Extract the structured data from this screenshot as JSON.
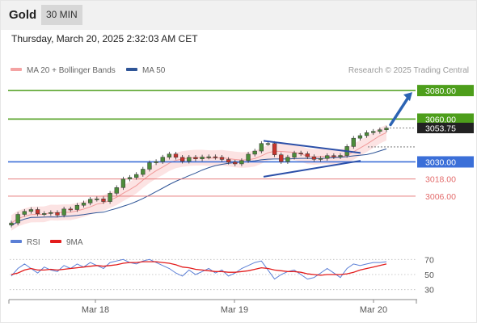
{
  "header": {
    "symbol": "Gold",
    "timeframe": "30 MIN",
    "timestamp": "Thursday, March 20, 2025 2:32:03 AM CET"
  },
  "legend": [
    {
      "label": "MA 20 + Bollinger Bands",
      "color": "#f4a3a3"
    },
    {
      "label": "MA 50",
      "color": "#2f5597"
    }
  ],
  "credit": "Research © 2025 Trading Central",
  "rsi_legend": [
    {
      "label": "RSI",
      "color": "#5b7fd6"
    },
    {
      "label": "9MA",
      "color": "#e31c1c"
    }
  ],
  "colors": {
    "resistance": "#4d9e1b",
    "pivot": "#3b6fd8",
    "support": "#e36b6b",
    "price_tag": "#222222",
    "arrow": "#2b63b3",
    "candle_up": "#4c8c3a",
    "candle_down": "#c8342d"
  },
  "chart_data": [
    {
      "type": "candlestick",
      "y_axis_side": "right",
      "ylim": [
        2985,
        3088
      ],
      "x_ticks": [
        "Mar 18",
        "Mar 19",
        "Mar 20"
      ],
      "levels": [
        {
          "value": 3080.0,
          "label": "3080.00",
          "kind": "resistance"
        },
        {
          "value": 3060.0,
          "label": "3060.00",
          "kind": "resistance"
        },
        {
          "value": 3030.0,
          "label": "3030.00",
          "kind": "pivot"
        },
        {
          "value": 3018.0,
          "label": "3018.00",
          "kind": "support"
        },
        {
          "value": 3006.0,
          "label": "3006.00",
          "kind": "support"
        }
      ],
      "last_price": {
        "value": 3053.75,
        "label": "3053.75"
      },
      "closes": [
        2987.2,
        2993.2,
        2995.3,
        2996.6,
        2993.6,
        2993.8,
        2994.5,
        2992.7,
        2997.0,
        2996.6,
        2999.6,
        3001.2,
        3003.8,
        3004.1,
        3002.2,
        3008.0,
        3012.0,
        3018.0,
        3019.1,
        3021.2,
        3024.9,
        3029.4,
        3030.2,
        3033.3,
        3035.5,
        3033.2,
        3030.5,
        3033.2,
        3032.1,
        3033.4,
        3033.6,
        3033.2,
        3031.7,
        3029.8,
        3028.6,
        3030.9,
        3035.4,
        3037.6,
        3042.9,
        3042.9,
        3035.0,
        3030.2,
        3033.3,
        3036.2,
        3035.7,
        3033.6,
        3031.8,
        3032.4,
        3034.4,
        3033.6,
        3034.5,
        3040.8,
        3046.6,
        3048.4,
        3050.5,
        3051.4,
        3052.5,
        3053.75
      ],
      "annotations": {
        "wedge_upper": [
          [
            3044.8,
            3036.3
          ]
        ],
        "wedge_lower": [
          [
            3019.6,
            3030.8
          ]
        ],
        "arrow_target": 3080.0
      }
    },
    {
      "type": "line",
      "ylim": [
        20,
        80
      ],
      "y_ticks": [
        70,
        50,
        30
      ],
      "series": [
        {
          "name": "RSI",
          "values": [
            48,
            58,
            64,
            58,
            52,
            60,
            56,
            54,
            62,
            58,
            64,
            60,
            66,
            62,
            58,
            66,
            68,
            70,
            66,
            64,
            68,
            70,
            66,
            62,
            58,
            52,
            48,
            56,
            50,
            54,
            58,
            52,
            56,
            48,
            52,
            58,
            62,
            66,
            68,
            56,
            44,
            50,
            54,
            56,
            50,
            44,
            46,
            52,
            58,
            52,
            46,
            58,
            64,
            62,
            64,
            66,
            66,
            67
          ]
        },
        {
          "name": "9MA",
          "values": [
            50,
            52,
            56,
            58,
            56,
            56,
            57,
            56,
            57,
            58,
            59,
            60,
            61,
            62,
            61,
            62,
            63,
            65,
            66,
            66,
            67,
            67,
            67,
            66,
            65,
            63,
            60,
            59,
            57,
            56,
            55,
            54,
            54,
            53,
            53,
            54,
            55,
            57,
            59,
            58,
            56,
            55,
            54,
            54,
            53,
            51,
            50,
            49,
            50,
            50,
            50,
            51,
            53,
            56,
            58,
            60,
            62,
            64
          ]
        }
      ]
    }
  ]
}
